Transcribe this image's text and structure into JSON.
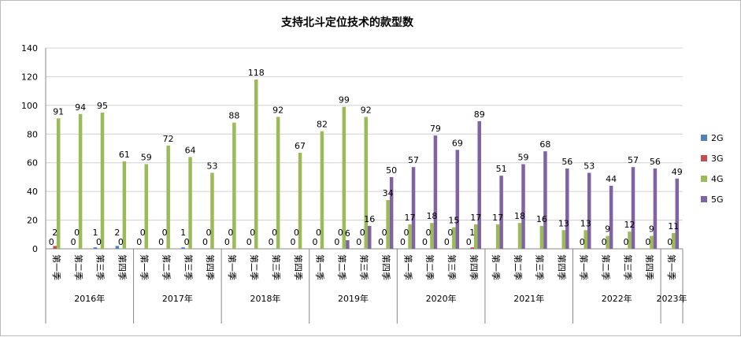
{
  "chart_data": {
    "type": "bar",
    "title": "支持北斗定位技术的款型数",
    "ylim": [
      0,
      140
    ],
    "yticks": [
      0,
      20,
      40,
      60,
      80,
      100,
      120,
      140
    ],
    "grid": true,
    "legend_position": "right",
    "quarters": [
      "第一季",
      "第二季",
      "第三季",
      "第四季"
    ],
    "years": [
      {
        "label": "2016年",
        "count": 4
      },
      {
        "label": "2017年",
        "count": 4
      },
      {
        "label": "2018年",
        "count": 4
      },
      {
        "label": "2019年",
        "count": 4
      },
      {
        "label": "2020年",
        "count": 4
      },
      {
        "label": "2021年",
        "count": 4
      },
      {
        "label": "2022年",
        "count": 4
      },
      {
        "label": "2023年",
        "count": 1
      }
    ],
    "series": [
      {
        "name": "2G",
        "color": "#4f81bd",
        "values": [
          0,
          0,
          1,
          2,
          0,
          0,
          1,
          0,
          0,
          0,
          0,
          0,
          0,
          0,
          0,
          0,
          0,
          0,
          0,
          0,
          null,
          null,
          null,
          null,
          null,
          null,
          null,
          null,
          null
        ]
      },
      {
        "name": "3G",
        "color": "#c0504d",
        "values": [
          2,
          0,
          0,
          0,
          0,
          0,
          0,
          0,
          0,
          0,
          0,
          0,
          0,
          0,
          0,
          0,
          0,
          0,
          0,
          1,
          null,
          null,
          null,
          null,
          0,
          0,
          0,
          0,
          0
        ]
      },
      {
        "name": "4G",
        "color": "#9bbb59",
        "values": [
          91,
          94,
          95,
          61,
          59,
          72,
          64,
          53,
          88,
          118,
          92,
          67,
          82,
          99,
          92,
          34,
          17,
          18,
          15,
          17,
          17,
          18,
          16,
          13,
          13,
          9,
          12,
          9,
          11
        ]
      },
      {
        "name": "5G",
        "color": "#8064a2",
        "values": [
          null,
          null,
          null,
          null,
          null,
          null,
          null,
          null,
          null,
          null,
          null,
          null,
          null,
          6,
          16,
          50,
          57,
          79,
          69,
          89,
          51,
          59,
          68,
          56,
          53,
          44,
          57,
          56,
          49
        ]
      }
    ]
  }
}
